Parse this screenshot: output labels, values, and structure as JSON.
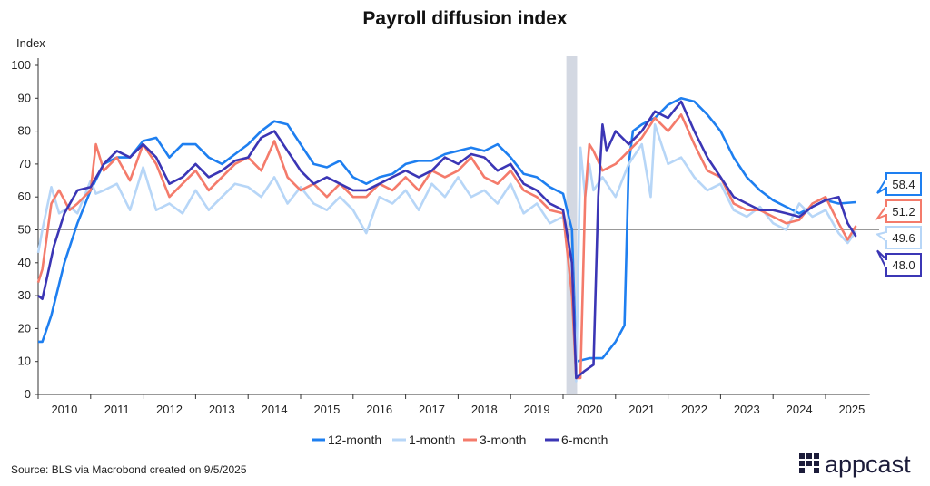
{
  "chart_data": {
    "type": "line",
    "title": "Payroll diffusion index",
    "ylabel": "Index",
    "xlabel": "",
    "ylim": [
      0,
      100
    ],
    "xlim": [
      2010,
      2025.67
    ],
    "yticks": [
      "0",
      "10",
      "20",
      "30",
      "40",
      "50",
      "60",
      "70",
      "80",
      "90",
      "100"
    ],
    "xticks": [
      "2010",
      "2011",
      "2012",
      "2013",
      "2014",
      "2015",
      "2016",
      "2017",
      "2018",
      "2019",
      "2020",
      "2021",
      "2022",
      "2023",
      "2024",
      "2025"
    ],
    "reference_line": 50,
    "recession_shade": [
      2020.08,
      2020.25
    ],
    "legend_position": "bottom-center",
    "series": [
      {
        "name": "12-month",
        "color": "#1e7ff0",
        "end_label": "58.4",
        "x": [
          2010,
          2010.08,
          2010.25,
          2010.5,
          2010.75,
          2011,
          2011.25,
          2011.5,
          2011.75,
          2012,
          2012.25,
          2012.5,
          2012.75,
          2013,
          2013.25,
          2013.5,
          2013.75,
          2014,
          2014.25,
          2014.5,
          2014.75,
          2015,
          2015.25,
          2015.5,
          2015.75,
          2016,
          2016.25,
          2016.5,
          2016.75,
          2017,
          2017.25,
          2017.5,
          2017.75,
          2018,
          2018.25,
          2018.5,
          2018.75,
          2019,
          2019.25,
          2019.5,
          2019.75,
          2020,
          2020.17,
          2020.25,
          2020.5,
          2020.75,
          2021,
          2021.17,
          2021.25,
          2021.33,
          2021.5,
          2021.75,
          2022,
          2022.25,
          2022.5,
          2022.75,
          2023,
          2023.25,
          2023.5,
          2023.75,
          2024,
          2024.25,
          2024.5,
          2024.75,
          2025,
          2025.25,
          2025.58
        ],
        "values": [
          16,
          16,
          24,
          40,
          52,
          62,
          70,
          72,
          72,
          77,
          78,
          72,
          76,
          76,
          72,
          70,
          73,
          76,
          80,
          83,
          82,
          76,
          70,
          69,
          71,
          66,
          64,
          66,
          67,
          70,
          71,
          71,
          73,
          74,
          75,
          74,
          76,
          72,
          67,
          66,
          63,
          61,
          50,
          10,
          11,
          11,
          16,
          21,
          70,
          80,
          82,
          84,
          88,
          90,
          89,
          85,
          80,
          72,
          66,
          62,
          59,
          57,
          55,
          57,
          59,
          58,
          58.4
        ]
      },
      {
        "name": "1-month",
        "color": "#b7d6f7",
        "end_label": "49.6",
        "x": [
          2010,
          2010.08,
          2010.25,
          2010.4,
          2010.6,
          2010.75,
          2011,
          2011.1,
          2011.25,
          2011.5,
          2011.75,
          2012,
          2012.25,
          2012.5,
          2012.75,
          2013,
          2013.25,
          2013.5,
          2013.75,
          2014,
          2014.25,
          2014.5,
          2014.75,
          2015,
          2015.25,
          2015.5,
          2015.75,
          2016,
          2016.25,
          2016.5,
          2016.75,
          2017,
          2017.25,
          2017.5,
          2017.75,
          2018,
          2018.25,
          2018.5,
          2018.75,
          2019,
          2019.25,
          2019.5,
          2019.75,
          2020,
          2020.17,
          2020.25,
          2020.33,
          2020.42,
          2020.5,
          2020.58,
          2020.75,
          2021,
          2021.25,
          2021.5,
          2021.67,
          2021.75,
          2022,
          2022.25,
          2022.5,
          2022.75,
          2023,
          2023.25,
          2023.5,
          2023.75,
          2024,
          2024.25,
          2024.5,
          2024.75,
          2025,
          2025.25,
          2025.42,
          2025.58
        ],
        "values": [
          43,
          50,
          63,
          55,
          57,
          55,
          65,
          61,
          62,
          64,
          56,
          69,
          56,
          58,
          55,
          62,
          56,
          60,
          64,
          63,
          60,
          66,
          58,
          63,
          58,
          56,
          60,
          56,
          49,
          60,
          58,
          62,
          56,
          64,
          60,
          66,
          60,
          62,
          58,
          64,
          55,
          58,
          52,
          54,
          40,
          4,
          75,
          60,
          70,
          62,
          66,
          60,
          70,
          76,
          60,
          82,
          70,
          72,
          66,
          62,
          64,
          56,
          54,
          57,
          52,
          50,
          58,
          54,
          56,
          49,
          46,
          49.6
        ]
      },
      {
        "name": "3-month",
        "color": "#f47b6b",
        "end_label": "51.2",
        "x": [
          2010,
          2010.08,
          2010.25,
          2010.4,
          2010.6,
          2010.75,
          2011,
          2011.1,
          2011.25,
          2011.5,
          2011.75,
          2012,
          2012.25,
          2012.5,
          2012.75,
          2013,
          2013.25,
          2013.5,
          2013.75,
          2014,
          2014.25,
          2014.5,
          2014.75,
          2015,
          2015.25,
          2015.5,
          2015.75,
          2016,
          2016.25,
          2016.5,
          2016.75,
          2017,
          2017.25,
          2017.5,
          2017.75,
          2018,
          2018.25,
          2018.5,
          2018.75,
          2019,
          2019.25,
          2019.5,
          2019.75,
          2020,
          2020.17,
          2020.25,
          2020.33,
          2020.42,
          2020.5,
          2020.58,
          2020.75,
          2021,
          2021.25,
          2021.5,
          2021.75,
          2022,
          2022.25,
          2022.5,
          2022.75,
          2023,
          2023.25,
          2023.5,
          2023.75,
          2024,
          2024.25,
          2024.5,
          2024.75,
          2025,
          2025.25,
          2025.42,
          2025.58
        ],
        "values": [
          34,
          38,
          58,
          62,
          56,
          58,
          62,
          76,
          68,
          72,
          65,
          76,
          70,
          60,
          64,
          68,
          62,
          66,
          70,
          72,
          68,
          77,
          66,
          62,
          64,
          60,
          64,
          60,
          60,
          64,
          62,
          66,
          62,
          68,
          66,
          68,
          72,
          66,
          64,
          68,
          62,
          60,
          56,
          55,
          30,
          5,
          5,
          60,
          76,
          74,
          68,
          70,
          74,
          78,
          84,
          80,
          85,
          76,
          68,
          66,
          58,
          56,
          56,
          54,
          52,
          53,
          58,
          60,
          52,
          47,
          51.2
        ]
      },
      {
        "name": "6-month",
        "color": "#3b36b5",
        "end_label": "48.0",
        "x": [
          2010,
          2010.08,
          2010.3,
          2010.5,
          2010.75,
          2011,
          2011.25,
          2011.5,
          2011.75,
          2012,
          2012.25,
          2012.5,
          2012.75,
          2013,
          2013.25,
          2013.5,
          2013.75,
          2014,
          2014.25,
          2014.5,
          2014.75,
          2015,
          2015.25,
          2015.5,
          2015.75,
          2016,
          2016.25,
          2016.5,
          2016.75,
          2017,
          2017.25,
          2017.5,
          2017.75,
          2018,
          2018.25,
          2018.5,
          2018.75,
          2019,
          2019.25,
          2019.5,
          2019.75,
          2020,
          2020.17,
          2020.25,
          2020.4,
          2020.58,
          2020.67,
          2020.75,
          2020.83,
          2021,
          2021.25,
          2021.5,
          2021.75,
          2022,
          2022.25,
          2022.5,
          2022.75,
          2023,
          2023.25,
          2023.5,
          2023.75,
          2024,
          2024.25,
          2024.5,
          2024.75,
          2025,
          2025.25,
          2025.42,
          2025.58
        ],
        "values": [
          30,
          29,
          45,
          55,
          62,
          63,
          70,
          74,
          72,
          76,
          72,
          64,
          66,
          70,
          66,
          68,
          71,
          72,
          78,
          80,
          74,
          68,
          64,
          66,
          64,
          62,
          62,
          64,
          66,
          68,
          66,
          68,
          72,
          70,
          73,
          72,
          68,
          70,
          64,
          62,
          58,
          56,
          40,
          5,
          7,
          9,
          60,
          82,
          74,
          80,
          76,
          80,
          86,
          84,
          89,
          80,
          72,
          66,
          60,
          58,
          56,
          56,
          55,
          54,
          57,
          59,
          60,
          52,
          48
        ]
      }
    ]
  },
  "source": "Source: BLS via Macrobond created on 9/5/2025",
  "logo": "appcast"
}
